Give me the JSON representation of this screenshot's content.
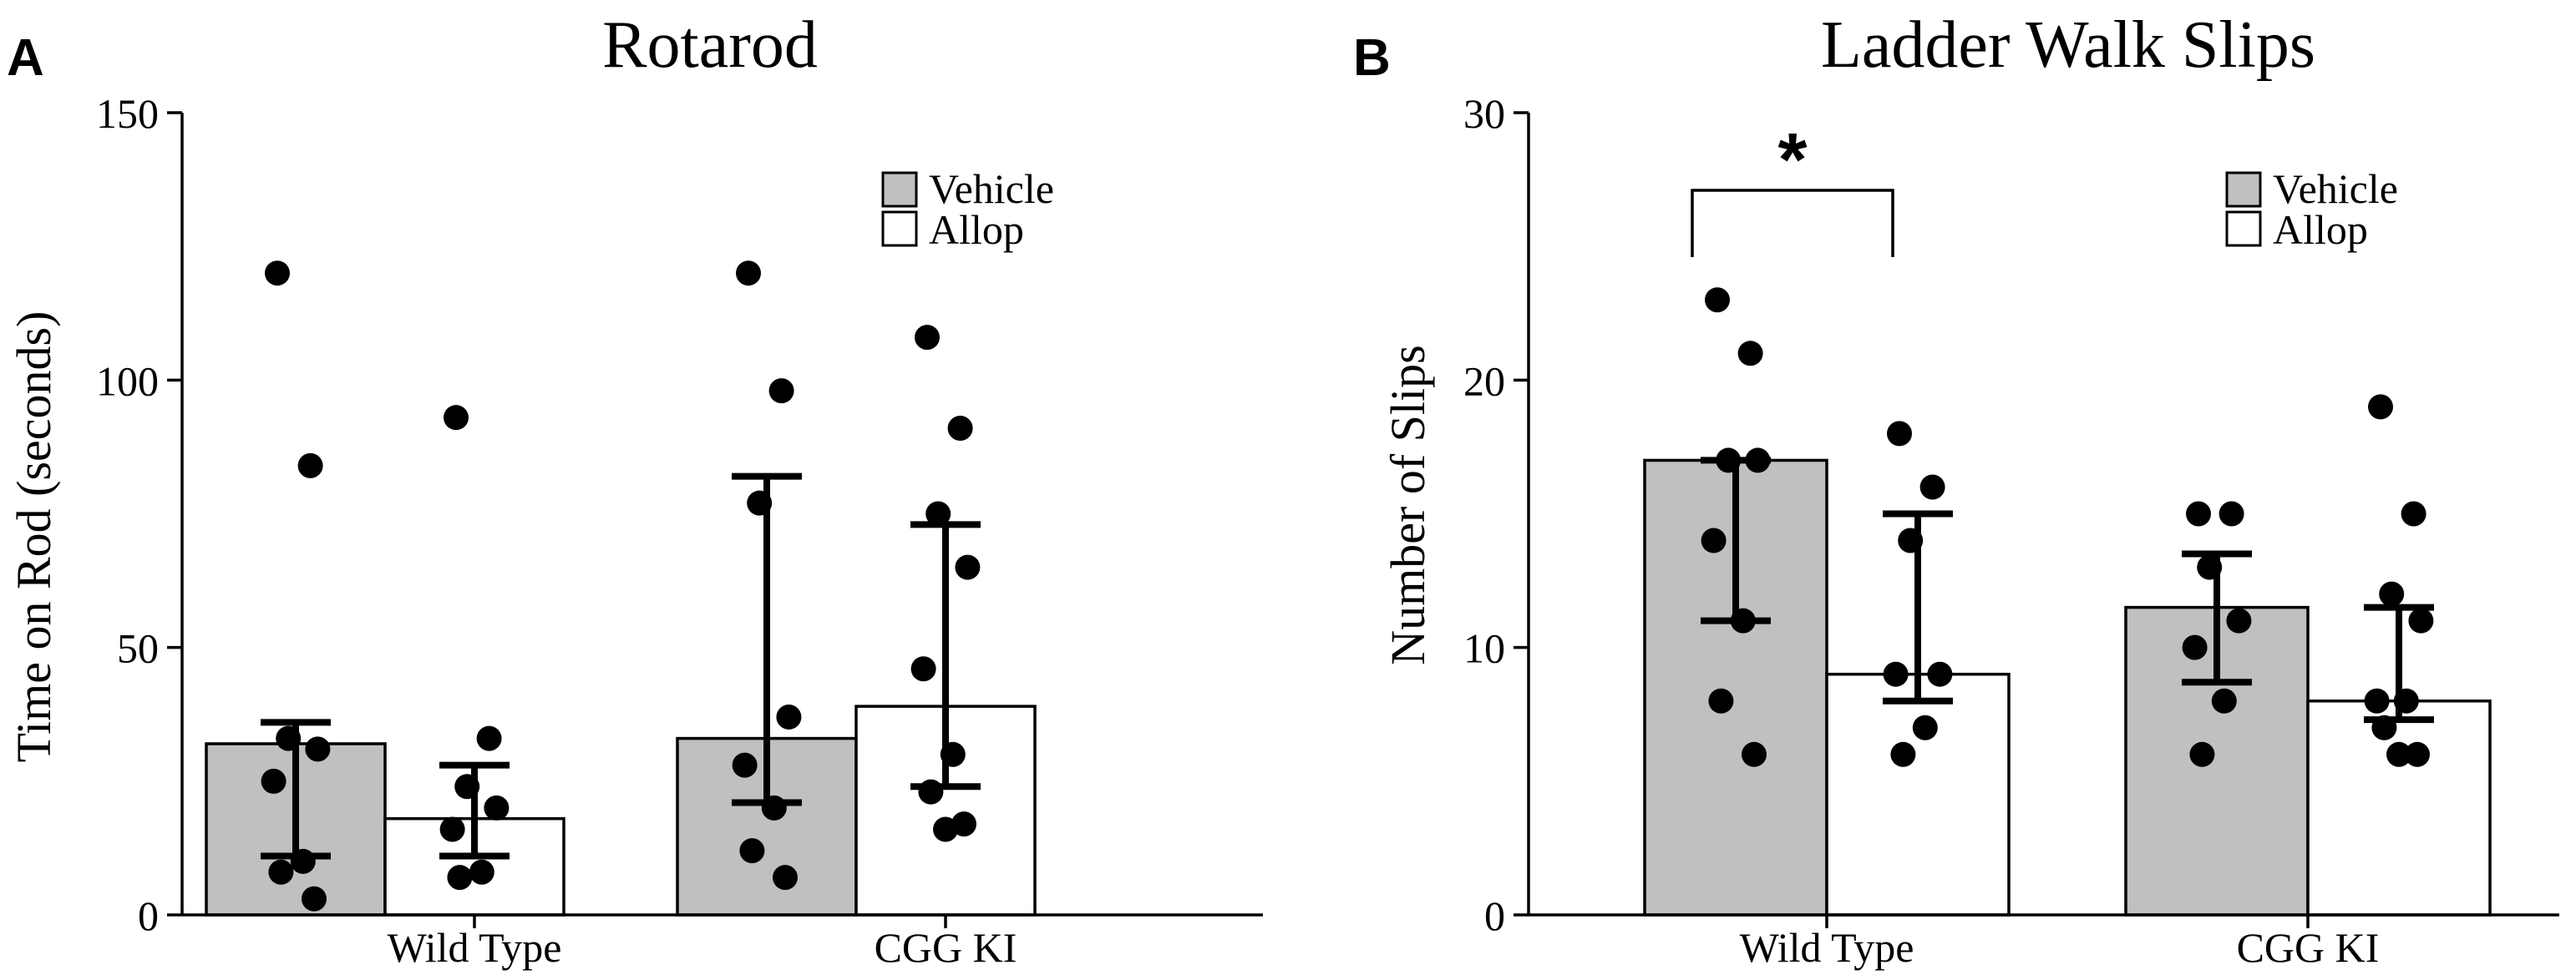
{
  "colors": {
    "vehicle_fill": "#c0c0c0",
    "allop_fill": "#ffffff",
    "ink": "#000000"
  },
  "chart_data": [
    {
      "panel_label": "A",
      "type": "bar",
      "title": "Rotarod",
      "xlabel": "",
      "ylabel": "Time on Rod (seconds)",
      "ylim": [
        0,
        150
      ],
      "yticks": [
        "0",
        "50",
        "100",
        "150"
      ],
      "ytick_values": [
        0,
        50,
        100,
        150
      ],
      "categories": [
        "Wild Type",
        "CGG KI"
      ],
      "legend": [
        "Vehicle",
        "Allop"
      ],
      "legend_position": "top-right",
      "series": [
        {
          "name": "Vehicle",
          "values": [
            32,
            33
          ],
          "err_low": [
            11,
            21
          ],
          "err_high": [
            36,
            82
          ],
          "points": [
            [
              120,
              84,
              33,
              31,
              25,
              10,
              8,
              3
            ],
            [
              120,
              98,
              77,
              37,
              28,
              20,
              12,
              7
            ]
          ]
        },
        {
          "name": "Allop",
          "values": [
            18,
            39
          ],
          "err_low": [
            11,
            24
          ],
          "err_high": [
            28,
            73
          ],
          "points": [
            [
              93,
              33,
              24,
              20,
              16,
              8,
              7
            ],
            [
              108,
              91,
              75,
              65,
              46,
              30,
              23,
              17,
              16
            ]
          ]
        }
      ],
      "annotations": []
    },
    {
      "panel_label": "B",
      "type": "bar",
      "title": "Ladder Walk Slips",
      "xlabel": "",
      "ylabel": "Number of Slips",
      "ylim": [
        0,
        30
      ],
      "yticks": [
        "0",
        "10",
        "20",
        "30"
      ],
      "ytick_values": [
        0,
        10,
        20,
        30
      ],
      "categories": [
        "Wild Type",
        "CGG KI"
      ],
      "legend": [
        "Vehicle",
        "Allop"
      ],
      "legend_position": "top-right",
      "series": [
        {
          "name": "Vehicle",
          "values": [
            17,
            11.5
          ],
          "err_low": [
            11,
            8.7
          ],
          "err_high": [
            17,
            13.5
          ],
          "points": [
            [
              23,
              21,
              17,
              17,
              14,
              11,
              8,
              6
            ],
            [
              15,
              15,
              13,
              11,
              10,
              8,
              6
            ]
          ]
        },
        {
          "name": "Allop",
          "values": [
            9,
            8
          ],
          "err_low": [
            8,
            7.3
          ],
          "err_high": [
            15,
            11.5
          ],
          "points": [
            [
              18,
              16,
              14,
              9,
              9,
              7,
              6
            ],
            [
              19,
              15,
              12,
              11,
              8,
              8,
              7,
              6,
              6
            ]
          ]
        }
      ],
      "annotations": [
        {
          "text": "*",
          "type": "significance",
          "between": [
            "Wild Type Vehicle",
            "Wild Type Allop"
          ]
        }
      ]
    }
  ]
}
